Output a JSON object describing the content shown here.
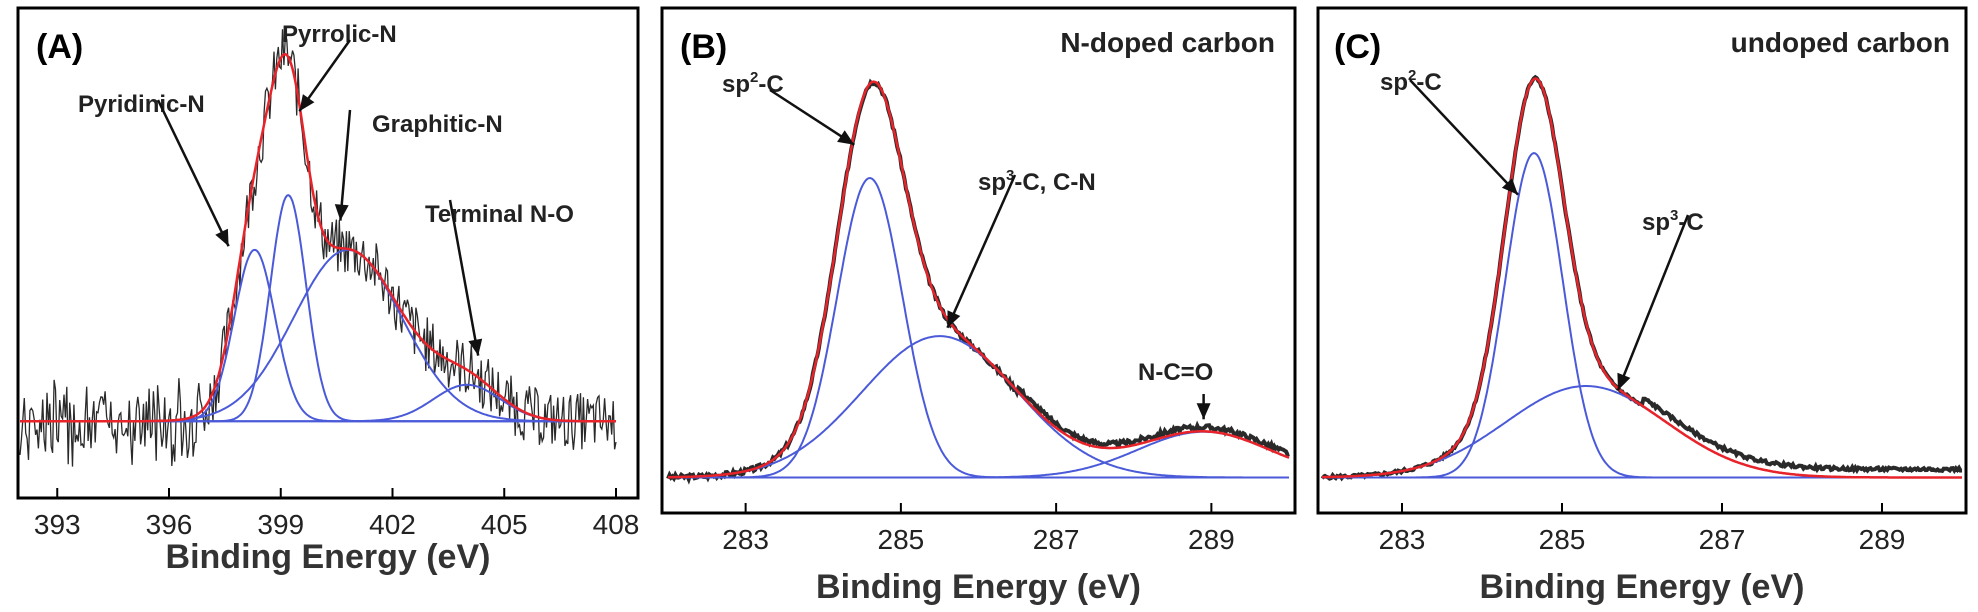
{
  "colors": {
    "raw": "#2a2a2a",
    "fit": "#e8232a",
    "component": "#4a5ad8",
    "frame": "#000000"
  },
  "chart_data": [
    {
      "type": "line",
      "panel": "(A)",
      "title": "",
      "xlabel": "Binding Energy (eV)",
      "ylabel": "",
      "xlim": [
        392,
        408
      ],
      "xticks": [
        393,
        396,
        399,
        402,
        405,
        408
      ],
      "xtick_labels": [
        "393",
        "396",
        "399",
        "402",
        "405",
        "408"
      ],
      "ylim": [
        -0.15,
        1.1
      ],
      "baseline": 0,
      "components": [
        {
          "name": "Pyridinic-N",
          "center": 398.3,
          "height": 0.47,
          "width": 0.55
        },
        {
          "name": "Pyrrolic-N",
          "center": 399.2,
          "height": 0.62,
          "width": 0.48
        },
        {
          "name": "Graphitic-N",
          "center": 400.8,
          "height": 0.47,
          "width": 1.45
        },
        {
          "name": "Terminal N-O",
          "center": 404.0,
          "height": 0.1,
          "width": 0.9
        }
      ],
      "annotations": [
        {
          "text": "Pyridinic-N",
          "target_x": 397.6,
          "target_y": 0.48
        },
        {
          "text": "Pyrrolic-N",
          "target_x": 399.5,
          "target_y": 0.85
        },
        {
          "text": "Graphitic-N",
          "target_x": 400.6,
          "target_y": 0.55
        },
        {
          "text": "Terminal N-O",
          "target_x": 404.3,
          "target_y": 0.18
        }
      ]
    },
    {
      "type": "line",
      "panel": "(B)",
      "title": "N-doped carbon",
      "xlabel": "Binding Energy (eV)",
      "ylabel": "",
      "xlim": [
        282,
        290
      ],
      "xticks": [
        283,
        285,
        287,
        289
      ],
      "xtick_labels": [
        "283",
        "285",
        "287",
        "289"
      ],
      "ylim": [
        -0.03,
        1.1
      ],
      "baseline": 0,
      "components": [
        {
          "name": "sp2-C",
          "center": 284.6,
          "height": 0.72,
          "width": 0.42
        },
        {
          "name": "sp3-C, C-N",
          "center": 285.5,
          "height": 0.34,
          "width": 1.0
        },
        {
          "name": "N-C=O",
          "center": 288.9,
          "height": 0.11,
          "width": 0.85
        }
      ],
      "annotations": [
        {
          "label": "sp",
          "sup": "2",
          "suffix": "-C",
          "target_x": 284.4,
          "target_y": 0.8
        },
        {
          "label": "sp",
          "sup": "3",
          "suffix": "-C, C-N",
          "target_x": 285.6,
          "target_y": 0.36
        },
        {
          "label": "N-C=O",
          "sup": "",
          "suffix": "",
          "target_x": 288.9,
          "target_y": 0.14
        }
      ]
    },
    {
      "type": "line",
      "panel": "(C)",
      "title": "undoped carbon",
      "xlabel": "Binding Energy (eV)",
      "ylabel": "",
      "xlim": [
        282,
        290
      ],
      "xticks": [
        283,
        285,
        287,
        289
      ],
      "xtick_labels": [
        "283",
        "285",
        "287",
        "289"
      ],
      "ylim": [
        -0.03,
        1.1
      ],
      "baseline": 0,
      "components": [
        {
          "name": "sp2-C",
          "center": 284.65,
          "height": 0.78,
          "width": 0.36
        },
        {
          "name": "sp3-C",
          "center": 285.3,
          "height": 0.22,
          "width": 1.0
        }
      ],
      "annotations": [
        {
          "label": "sp",
          "sup": "2",
          "suffix": "-C",
          "target_x": 284.45,
          "target_y": 0.68
        },
        {
          "label": "sp",
          "sup": "3",
          "suffix": "-C",
          "target_x": 285.7,
          "target_y": 0.21
        }
      ]
    }
  ]
}
